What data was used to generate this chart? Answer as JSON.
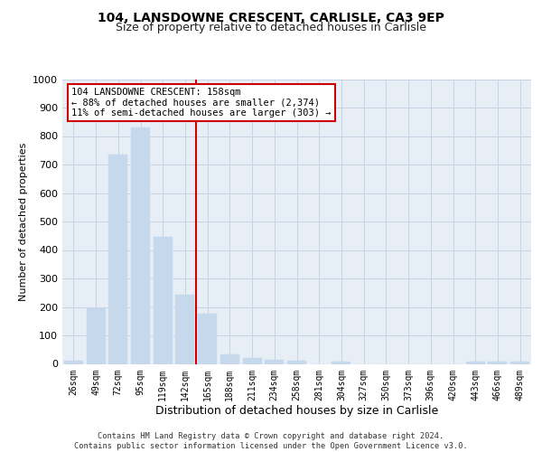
{
  "title1": "104, LANSDOWNE CRESCENT, CARLISLE, CA3 9EP",
  "title2": "Size of property relative to detached houses in Carlisle",
  "xlabel": "Distribution of detached houses by size in Carlisle",
  "ylabel": "Number of detached properties",
  "footer1": "Contains HM Land Registry data © Crown copyright and database right 2024.",
  "footer2": "Contains public sector information licensed under the Open Government Licence v3.0.",
  "categories": [
    "26sqm",
    "49sqm",
    "72sqm",
    "95sqm",
    "119sqm",
    "142sqm",
    "165sqm",
    "188sqm",
    "211sqm",
    "234sqm",
    "258sqm",
    "281sqm",
    "304sqm",
    "327sqm",
    "350sqm",
    "373sqm",
    "396sqm",
    "420sqm",
    "443sqm",
    "466sqm",
    "489sqm"
  ],
  "values": [
    12,
    195,
    735,
    830,
    445,
    242,
    175,
    32,
    22,
    13,
    10,
    0,
    8,
    0,
    0,
    0,
    0,
    0,
    8,
    8,
    8
  ],
  "bar_color": "#c5d8ec",
  "bar_edge_color": "#c5d8ec",
  "vline_color": "#cc0000",
  "annotation_text": "104 LANSDOWNE CRESCENT: 158sqm\n← 88% of detached houses are smaller (2,374)\n11% of semi-detached houses are larger (303) →",
  "annotation_box_color": "#ffffff",
  "annotation_box_edge": "#cc0000",
  "ylim": [
    0,
    1000
  ],
  "yticks": [
    0,
    100,
    200,
    300,
    400,
    500,
    600,
    700,
    800,
    900,
    1000
  ],
  "bg_color": "#ffffff",
  "plot_bg_color": "#e8eef5",
  "grid_color": "#c8d4e4",
  "title1_fontsize": 10,
  "title2_fontsize": 9,
  "tick_fontsize": 7,
  "ylabel_fontsize": 8,
  "xlabel_fontsize": 9
}
